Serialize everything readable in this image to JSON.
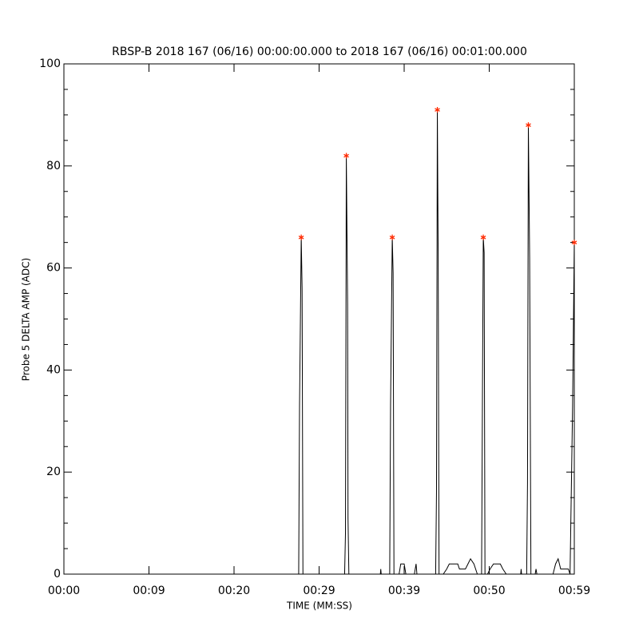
{
  "chart_data": {
    "type": "line",
    "title": "RBSP-B 2018 167 (06/16) 00:00:00.000 to 2018 167 (06/16) 00:01:00.000",
    "x_label": "TIME (MM:SS)",
    "y_label": "Probe 5 DELTA AMP (ADC)",
    "xlim": [
      0,
      60
    ],
    "ylim": [
      0,
      100
    ],
    "xticks": [
      {
        "value": 0,
        "label": "00:00"
      },
      {
        "value": 10,
        "label": "00:09"
      },
      {
        "value": 20,
        "label": "00:20"
      },
      {
        "value": 30,
        "label": "00:29"
      },
      {
        "value": 40,
        "label": "00:39"
      },
      {
        "value": 50,
        "label": "00:50"
      },
      {
        "value": 60,
        "label": "00:59"
      }
    ],
    "yticks": [
      0,
      20,
      40,
      60,
      80,
      100
    ],
    "series": [
      {
        "color": "#000000",
        "marker": "none",
        "x": [
          0,
          27.6,
          27.7,
          27.9,
          28.0,
          28.1,
          33.0,
          33.1,
          33.2,
          33.35,
          33.4,
          33.5,
          37.2,
          37.25,
          37.3,
          38.3,
          38.4,
          38.6,
          38.7,
          38.8,
          39.4,
          39.6,
          40.0,
          40.2,
          41.2,
          41.4,
          41.5,
          43.7,
          43.8,
          43.9,
          44.0,
          44.1,
          44.6,
          45.0,
          45.3,
          46.3,
          46.5,
          47.2,
          47.5,
          47.8,
          48.2,
          48.6,
          49.1,
          49.2,
          49.3,
          49.4,
          49.5,
          49.8,
          50.1,
          50.5,
          51.3,
          51.6,
          52.0,
          53.7,
          53.75,
          53.8,
          54.4,
          54.5,
          54.6,
          54.75,
          54.9,
          55.4,
          55.5,
          55.6,
          57.5,
          57.8,
          58.1,
          58.4,
          59.3,
          59.5,
          59.8,
          60
        ],
        "values": [
          0,
          0,
          33,
          66,
          56,
          0,
          0,
          8,
          82,
          53,
          11,
          0,
          0,
          1,
          0,
          0,
          33,
          66,
          59,
          0,
          0,
          2,
          2,
          0,
          0,
          2,
          0,
          0,
          16,
          91,
          62,
          0,
          0,
          1,
          2,
          2,
          1,
          1,
          2,
          3,
          2,
          0,
          0,
          34,
          66,
          63,
          0,
          0,
          1,
          2,
          2,
          1,
          0,
          0,
          1,
          0,
          0,
          18,
          88,
          62,
          0,
          0,
          1,
          0,
          0,
          2,
          3,
          1,
          1,
          0,
          33,
          65
        ]
      },
      {
        "color": "#ff2a00",
        "marker": "asterisk",
        "x": [
          27.9,
          33.2,
          38.6,
          43.9,
          49.3,
          54.6,
          60
        ],
        "values": [
          66,
          82,
          66,
          91,
          66,
          88,
          65
        ]
      }
    ]
  }
}
